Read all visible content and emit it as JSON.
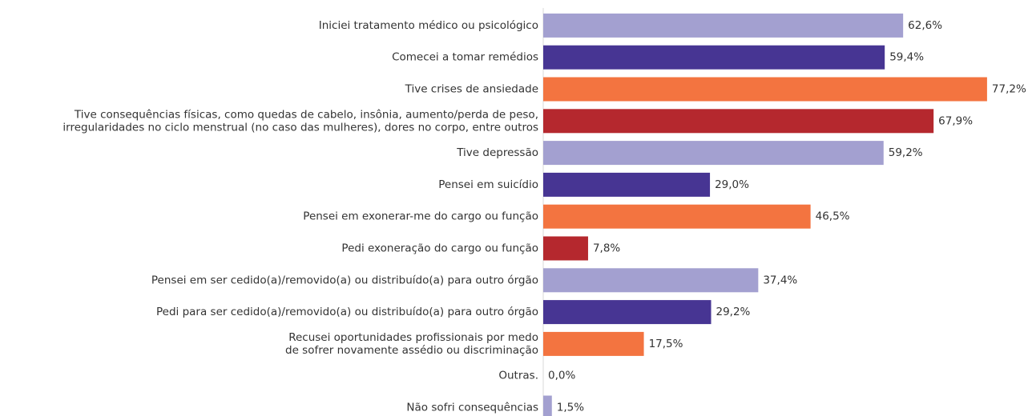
{
  "chart_data": {
    "type": "barh",
    "categories": [
      [
        "Iniciei tratamento médico ou psicológico"
      ],
      [
        "Comecei a tomar remédios"
      ],
      [
        "Tive crises de ansiedade"
      ],
      [
        "Tive consequências físicas, como quedas de cabelo, insônia, aumento/perda de peso,",
        "irregularidades no ciclo menstrual (no caso das mulheres), dores no corpo, entre outros"
      ],
      [
        "Tive depressão"
      ],
      [
        "Pensei em suicídio"
      ],
      [
        "Pensei em exonerar-me do cargo ou função"
      ],
      [
        "Pedi exoneração do cargo ou função"
      ],
      [
        "Pensei em ser cedido(a)/removido(a) ou distribuído(a) para outro órgão"
      ],
      [
        "Pedi para ser cedido(a)/removido(a) ou distribuído(a) para outro órgão"
      ],
      [
        "Recusei oportunidades profissionais por medo",
        "de sofrer novamente assédio ou discriminação"
      ],
      [
        "Outras."
      ],
      [
        "Não sofri consequências"
      ]
    ],
    "values": [
      62.6,
      59.4,
      77.2,
      67.9,
      59.2,
      29.0,
      46.5,
      7.8,
      37.4,
      29.2,
      17.5,
      0.0,
      1.5
    ],
    "value_labels": [
      "62,6%",
      "59,4%",
      "77,2%",
      "67,9%",
      "59,2%",
      "29,0%",
      "46,5%",
      "7,8%",
      "37,4%",
      "29,2%",
      "17,5%",
      "0,0%",
      "1,5%"
    ],
    "colors": [
      "#a3a0d0",
      "#473593",
      "#f37440",
      "#b5282e",
      "#a3a0d0",
      "#473593",
      "#f37440",
      "#b5282e",
      "#a3a0d0",
      "#473593",
      "#f37440",
      "#b5282e",
      "#a3a0d0"
    ],
    "xlim": [
      0,
      80
    ]
  }
}
